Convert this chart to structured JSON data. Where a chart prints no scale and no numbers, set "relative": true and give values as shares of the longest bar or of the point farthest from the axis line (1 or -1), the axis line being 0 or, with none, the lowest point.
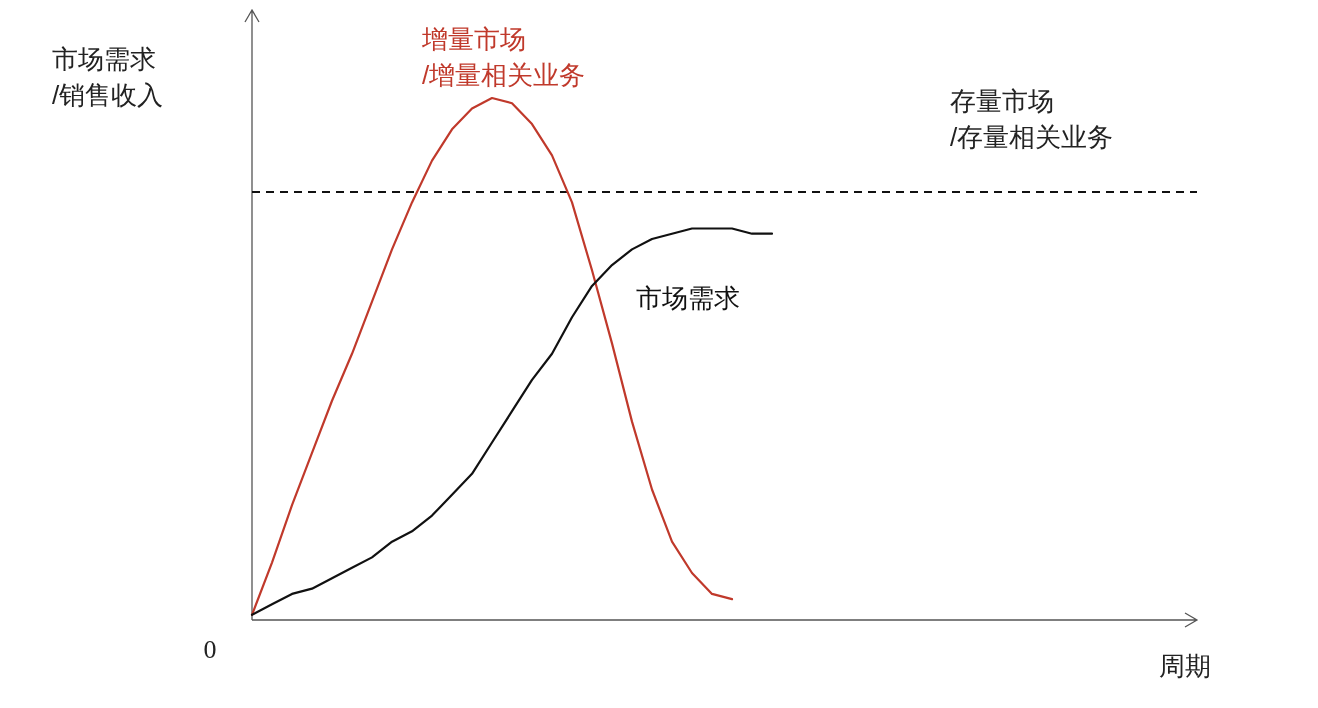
{
  "chart_data": {
    "type": "line",
    "relative": true,
    "ylabel": "市场需求\n/销售收入",
    "xlabel": "周期",
    "annotations": [
      "0"
    ],
    "categories": [
      null,
      null,
      null,
      null,
      null,
      null,
      null,
      null,
      null,
      null,
      null,
      null,
      null,
      null,
      null,
      null,
      null,
      null,
      null,
      null,
      null,
      null,
      null,
      null,
      null,
      null,
      null,
      null,
      null,
      null,
      null,
      null,
      null,
      null,
      null,
      null,
      null,
      null,
      null,
      null,
      null,
      null,
      null,
      null,
      null,
      null,
      null,
      null
    ],
    "series": [
      {
        "name": "增量市场\n/增量相关业务",
        "color": "#c0392b",
        "values": [
          0.01,
          0.11,
          0.22,
          0.32,
          0.42,
          0.51,
          0.61,
          0.71,
          0.8,
          0.88,
          0.94,
          0.98,
          1.0,
          0.99,
          0.95,
          0.89,
          0.8,
          0.67,
          0.53,
          0.38,
          0.25,
          0.15,
          0.09,
          0.05,
          0.04,
          null,
          null,
          null,
          null,
          null,
          null,
          null,
          null,
          null,
          null,
          null,
          null,
          null,
          null,
          null,
          null,
          null,
          null,
          null,
          null,
          null,
          null,
          null
        ]
      },
      {
        "name": "市场需求",
        "color": "#111111",
        "values": [
          0.01,
          0.03,
          0.05,
          0.06,
          0.08,
          0.1,
          0.12,
          0.15,
          0.17,
          0.2,
          0.24,
          0.28,
          0.34,
          0.4,
          0.46,
          0.51,
          0.58,
          0.64,
          0.68,
          0.71,
          0.73,
          0.74,
          0.75,
          0.75,
          0.75,
          0.74,
          0.74,
          null,
          null,
          null,
          null,
          null,
          null,
          null,
          null,
          null,
          null,
          null,
          null,
          null,
          null,
          null,
          null,
          null,
          null,
          null,
          null,
          null
        ]
      }
    ],
    "ref_lines": [
      {
        "axis": "y",
        "value": 0.82,
        "label": "存量市场\n/存量相关业务",
        "color": "#111111",
        "line_style": "dashed"
      }
    ],
    "legend": false,
    "grid": false
  }
}
